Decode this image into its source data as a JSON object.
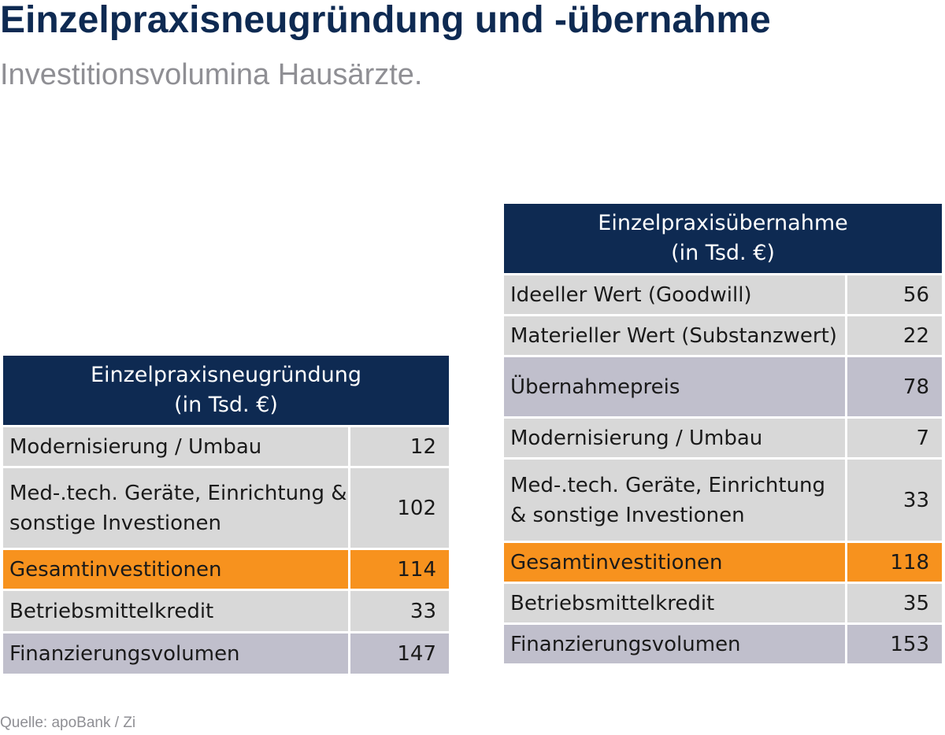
{
  "title": "Einzelpraxisneugründung und -übernahme",
  "subtitle": "Investitionsvolumina Hausärzte.",
  "source": "Quelle: apoBank / Zi",
  "colors": {
    "header": "#0e2a52",
    "row_plain": "#d8d8d8",
    "row_shaded": "#c0bfcc",
    "row_highlight": "#f7921e"
  },
  "chart_data": [
    {
      "type": "table",
      "header": [
        "Einzelpraxisneugründung",
        "(in Tsd. €)"
      ],
      "rows": [
        {
          "label": [
            "Modernisierung / Umbau"
          ],
          "value": 12,
          "display": "12",
          "style": "plain"
        },
        {
          "label": [
            "Med-.tech. Geräte, Einrichtung &",
            "sonstige Investionen"
          ],
          "value": 102,
          "display": "102",
          "style": "plain"
        },
        {
          "label": [
            "Gesamtinvestitionen"
          ],
          "value": 114,
          "display": "114",
          "style": "highlight"
        },
        {
          "label": [
            "Betriebsmittelkredit"
          ],
          "value": 33,
          "display": "33",
          "style": "plain"
        },
        {
          "label": [
            "Finanzierungsvolumen"
          ],
          "value": 147,
          "display": "147",
          "style": "shaded"
        }
      ]
    },
    {
      "type": "table",
      "header": [
        "Einzelpraxisübernahme",
        "(in Tsd. €)"
      ],
      "rows": [
        {
          "label": [
            "Ideeller Wert (Goodwill)"
          ],
          "value": 56,
          "display": "56",
          "style": "plain"
        },
        {
          "label": [
            "Materieller Wert (Substanzwert)"
          ],
          "value": 22,
          "display": "22",
          "style": "plain"
        },
        {
          "label": [
            "Übernahmepreis"
          ],
          "value": 78,
          "display": "78",
          "style": "shaded"
        },
        {
          "label": [
            "Modernisierung / Umbau"
          ],
          "value": 7,
          "display": "7",
          "style": "plain"
        },
        {
          "label": [
            "Med-.tech. Geräte, Einrichtung",
            "& sonstige Investionen"
          ],
          "value": 33,
          "display": "33",
          "style": "plain"
        },
        {
          "label": [
            "Gesamtinvestitionen"
          ],
          "value": 118,
          "display": "118",
          "style": "highlight"
        },
        {
          "label": [
            "Betriebsmittelkredit"
          ],
          "value": 35,
          "display": "35",
          "style": "plain"
        },
        {
          "label": [
            "Finanzierungsvolumen"
          ],
          "value": 153,
          "display": "153",
          "style": "shaded"
        }
      ]
    }
  ]
}
